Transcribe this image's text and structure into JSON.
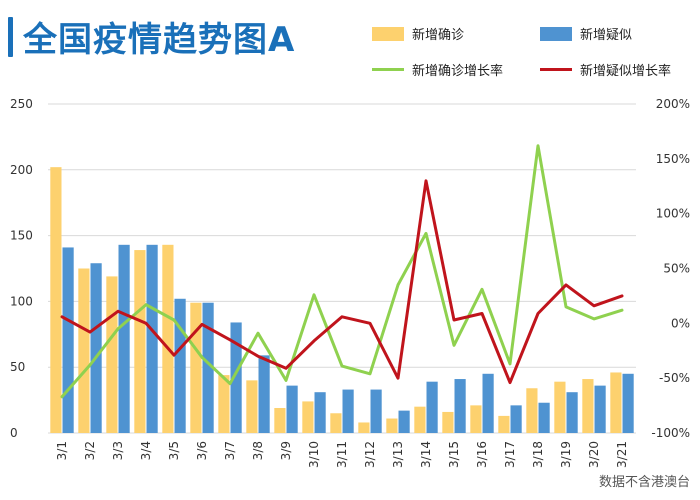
{
  "title": "全国疫情趋势图A",
  "source": "数据不含港澳台",
  "colors": {
    "title": "#1a70b9",
    "confirmed_bar": "#fdd16e",
    "suspected_bar": "#4f93d1",
    "confirmed_growth": "#8fd14f",
    "suspected_growth": "#c0141c",
    "grid": "#d9d9d9"
  },
  "chart_data": {
    "type": "bar",
    "categories": [
      "3/1",
      "3/2",
      "3/3",
      "3/4",
      "3/5",
      "3/6",
      "3/7",
      "3/8",
      "3/9",
      "3/10",
      "3/11",
      "3/12",
      "3/13",
      "3/14",
      "3/15",
      "3/16",
      "3/17",
      "3/18",
      "3/19",
      "3/20",
      "3/21"
    ],
    "series": [
      {
        "name": "新增确诊",
        "type": "bar",
        "axis": "left",
        "values": [
          202,
          125,
          119,
          139,
          143,
          99,
          44,
          40,
          19,
          24,
          15,
          8,
          11,
          20,
          16,
          21,
          13,
          34,
          39,
          41,
          46
        ]
      },
      {
        "name": "新增疑似",
        "type": "bar",
        "axis": "left",
        "values": [
          141,
          129,
          143,
          143,
          102,
          99,
          84,
          59,
          36,
          31,
          33,
          33,
          17,
          39,
          41,
          45,
          21,
          23,
          31,
          36,
          45
        ]
      },
      {
        "name": "新增确诊增长率",
        "type": "line",
        "axis": "right",
        "unit": "%",
        "values": [
          -67,
          -38,
          -5,
          17,
          3,
          -31,
          -55,
          -9,
          -52,
          26,
          -39,
          -46,
          35,
          82,
          -20,
          31,
          -37,
          162,
          15,
          4,
          12
        ]
      },
      {
        "name": "新增疑似增长率",
        "type": "line",
        "axis": "right",
        "unit": "%",
        "values": [
          6,
          -8,
          11,
          0,
          -29,
          -1,
          -15,
          -30,
          -41,
          -16,
          6,
          0,
          -50,
          130,
          3,
          9,
          -54,
          9,
          35,
          16,
          25
        ]
      }
    ],
    "y_left": {
      "min": 0,
      "max": 250,
      "ticks": [
        "0",
        "50",
        "100",
        "150",
        "200",
        "250"
      ]
    },
    "y_right": {
      "min": -100,
      "max": 200,
      "ticks": [
        "-100%",
        "-50%",
        "0%",
        "50%",
        "100%",
        "150%",
        "200%"
      ]
    },
    "grid": true,
    "legend_position": "top-right"
  }
}
